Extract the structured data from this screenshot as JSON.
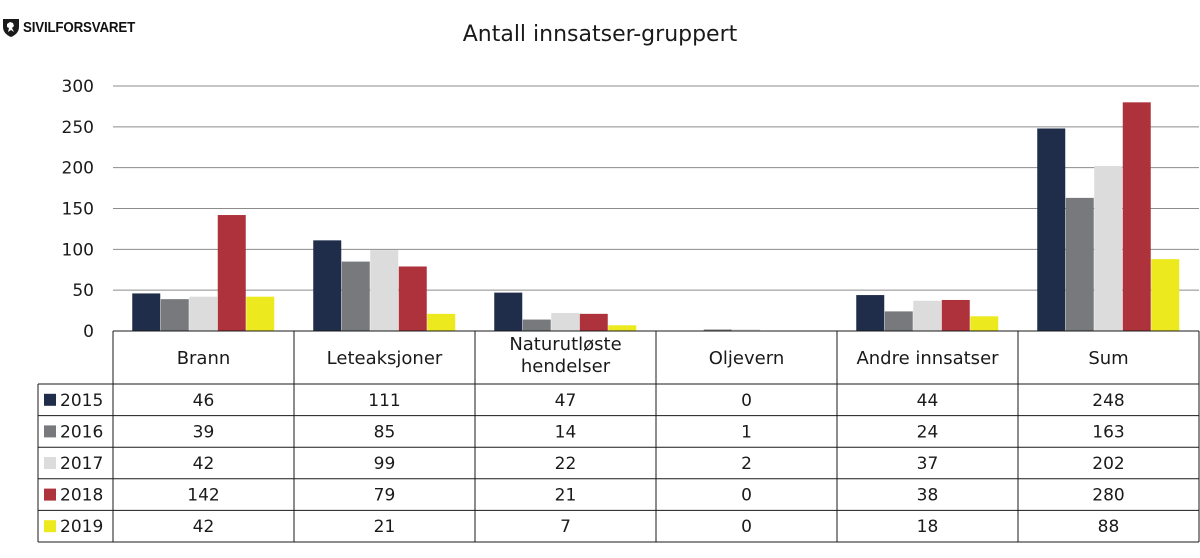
{
  "logo": {
    "text": "SIVILFORSVARET",
    "icon": "shield-lion-icon"
  },
  "chart_data": {
    "type": "bar",
    "title": "Antall innsatser-gruppert",
    "categories": [
      "Brann",
      "Leteaksjoner",
      "Naturutløste\nhendelser",
      "Oljevern",
      "Andre innsatser",
      "Sum"
    ],
    "series": [
      {
        "name": "2015",
        "color": "#1f2d4a",
        "values": [
          46,
          111,
          47,
          0,
          44,
          248
        ]
      },
      {
        "name": "2016",
        "color": "#77797d",
        "values": [
          39,
          85,
          14,
          1,
          24,
          163
        ]
      },
      {
        "name": "2017",
        "color": "#dcdcdc",
        "values": [
          42,
          99,
          22,
          2,
          37,
          202
        ]
      },
      {
        "name": "2018",
        "color": "#ad323b",
        "values": [
          142,
          79,
          21,
          0,
          38,
          280
        ]
      },
      {
        "name": "2019",
        "color": "#ece91f",
        "values": [
          42,
          21,
          7,
          0,
          18,
          88
        ]
      }
    ],
    "yticks": [
      0,
      50,
      100,
      150,
      200,
      250,
      300
    ],
    "ylim": [
      0,
      300
    ],
    "grid": true,
    "legend": "data-table-left"
  }
}
